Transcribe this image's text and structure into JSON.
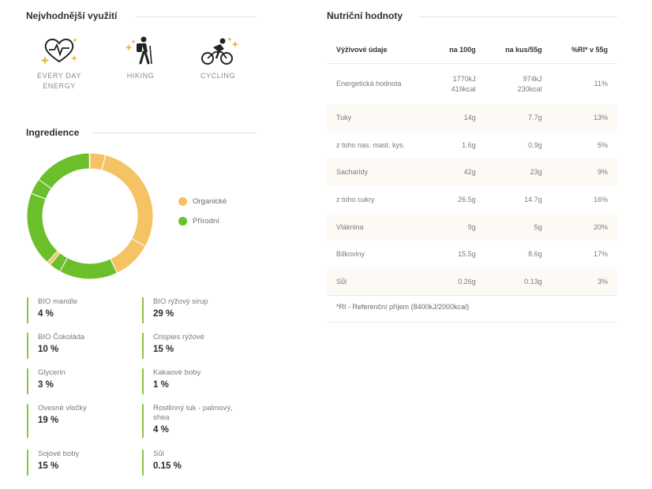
{
  "usage": {
    "title": "Nejvhodnější využití",
    "items": [
      {
        "icon": "heart-pulse-icon",
        "label_line1": "EVERY DAY",
        "label_line2": "ENERGY"
      },
      {
        "icon": "hiker-icon",
        "label_line1": "HIKING",
        "label_line2": ""
      },
      {
        "icon": "cyclist-icon",
        "label_line1": "CYCLING",
        "label_line2": ""
      }
    ]
  },
  "ingredients": {
    "title": "Ingredience",
    "legend": [
      {
        "label": "Organické",
        "color": "#f5c264"
      },
      {
        "label": "Přírodní",
        "color": "#6abf2a"
      }
    ],
    "items": [
      {
        "name_line1": "BIO mandle",
        "name_line2": "",
        "pct": "4 %"
      },
      {
        "name_line1": "BIO rýžový sirup",
        "name_line2": "",
        "pct": "29 %"
      },
      {
        "name_line1": "BIO Čokoláda",
        "name_line2": "",
        "pct": "10 %"
      },
      {
        "name_line1": "Crispies rýžové",
        "name_line2": "",
        "pct": "15 %"
      },
      {
        "name_line1": "Glycerin",
        "name_line2": "",
        "pct": "3 %"
      },
      {
        "name_line1": "Kakaové boby",
        "name_line2": "",
        "pct": "1 %"
      },
      {
        "name_line1": "Ovesné vločky",
        "name_line2": "",
        "pct": "19 %"
      },
      {
        "name_line1": "Rostlinný tuk - palmový,",
        "name_line2": "shea",
        "pct": "4 %"
      },
      {
        "name_line1": "Sojové boby",
        "name_line2": "",
        "pct": "15 %"
      },
      {
        "name_line1": "Sůl",
        "name_line2": "",
        "pct": "0.15 %"
      }
    ]
  },
  "nutrition": {
    "title": "Nutriční hodnoty",
    "headers": [
      "Výživové údaje",
      "na 100g",
      "na kus/55g",
      "%RI* v 55g"
    ],
    "rows": [
      {
        "name": "Energetická hodnota",
        "per100": "1770kJ",
        "per100_2": "419kcal",
        "perPiece": "974kJ",
        "perPiece_2": "230kcal",
        "ri": "11%"
      },
      {
        "name": "Tuky",
        "per100": "14g",
        "perPiece": "7.7g",
        "ri": "13%"
      },
      {
        "name": "z toho nas. mast. kys.",
        "per100": "1.6g",
        "perPiece": "0.9g",
        "ri": "5%"
      },
      {
        "name": "Sacharidy",
        "per100": "42g",
        "perPiece": "23g",
        "ri": "9%"
      },
      {
        "name": "z toho cukry",
        "per100": "26.5g",
        "perPiece": "14.7g",
        "ri": "16%"
      },
      {
        "name": "Vláknina",
        "per100": "9g",
        "perPiece": "5g",
        "ri": "20%"
      },
      {
        "name": "Bílkoviny",
        "per100": "15.5g",
        "perPiece": "8.6g",
        "ri": "17%"
      },
      {
        "name": "Sůl",
        "per100": "0.26g",
        "perPiece": "0.13g",
        "ri": "3%"
      }
    ],
    "note": "*RI - Referenční příjem (8400kJ/2000kcal)"
  },
  "chart_data": {
    "type": "pie",
    "donut": true,
    "legend_position": "right",
    "colors": {
      "organic": "#f5c264",
      "natural": "#6abf2a"
    },
    "slices": [
      {
        "name": "BIO mandle",
        "value": 4,
        "group": "organic"
      },
      {
        "name": "BIO rýžový sirup",
        "value": 29,
        "group": "organic"
      },
      {
        "name": "BIO Čokoláda",
        "value": 10,
        "group": "organic"
      },
      {
        "name": "Crispies rýžové",
        "value": 15,
        "group": "natural"
      },
      {
        "name": "Glycerin",
        "value": 3,
        "group": "natural"
      },
      {
        "name": "Kakaové boby",
        "value": 1,
        "group": "organic"
      },
      {
        "name": "Ovesné vločky",
        "value": 19,
        "group": "natural"
      },
      {
        "name": "Rostlinný tuk - palmový, shea",
        "value": 4,
        "group": "natural"
      },
      {
        "name": "Sojové boby",
        "value": 15,
        "group": "natural"
      },
      {
        "name": "Sůl",
        "value": 0.15,
        "group": "natural"
      }
    ]
  }
}
